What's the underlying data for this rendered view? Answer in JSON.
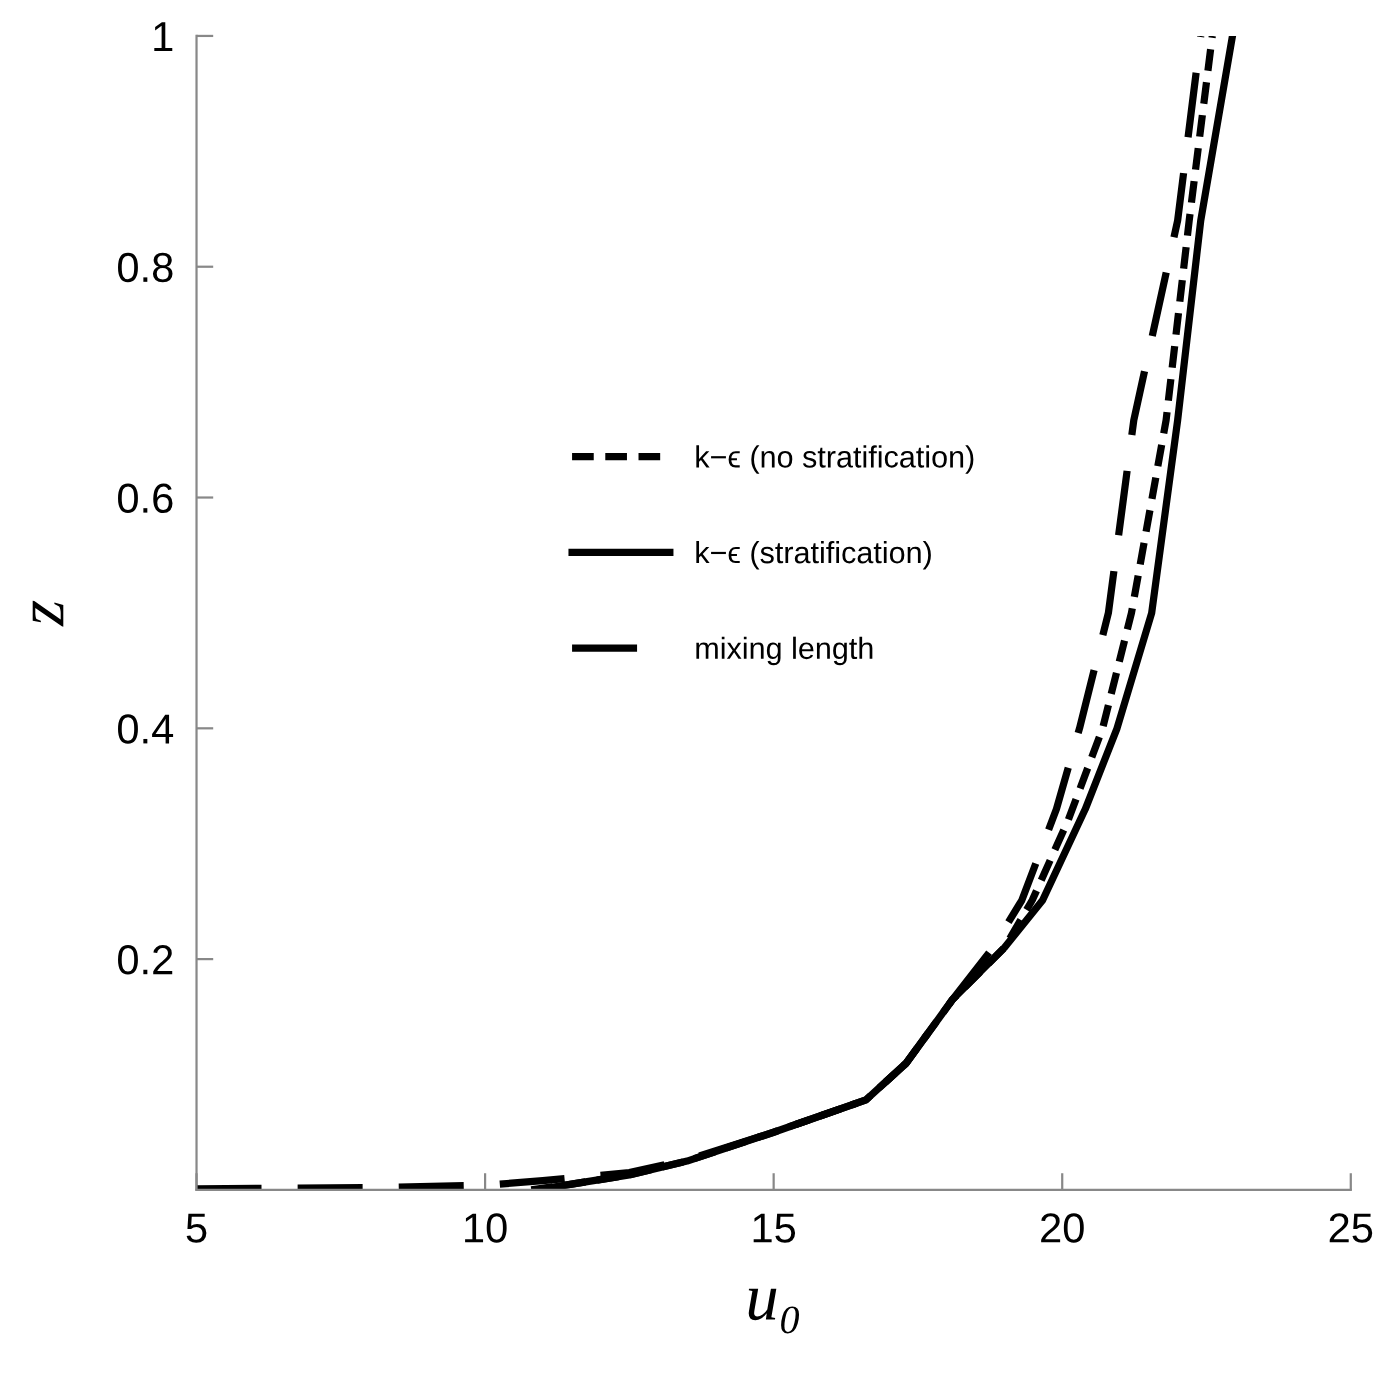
{
  "chart_data": {
    "type": "line",
    "xlabel": "u₀",
    "ylabel": "z",
    "xlim": [
      5,
      25
    ],
    "ylim": [
      0,
      1
    ],
    "xticks": [
      5,
      10,
      15,
      20,
      25
    ],
    "yticks": [
      0.2,
      0.4,
      0.6,
      0.8,
      1
    ],
    "grid": false,
    "legend": "center",
    "marker": "none",
    "series": [
      {
        "name": "k−ϵ (no stratification)",
        "color": "#000000",
        "line_style": "dashed",
        "x": [
          10.8,
          11.5,
          12.5,
          13.5,
          15,
          16.6,
          17.3,
          18.1,
          19.0,
          19.48,
          20.1,
          20.7,
          21.2,
          21.8,
          22.2,
          22.6
        ],
        "values": [
          0,
          0.005,
          0.013,
          0.025,
          0.05,
          0.078,
          0.11,
          0.165,
          0.21,
          0.251,
          0.32,
          0.4,
          0.5,
          0.667,
          0.84,
          1.0
        ]
      },
      {
        "name": "k−ϵ (stratification)",
        "color": "#000000",
        "line_style": "solid",
        "x": [
          10.9,
          11.5,
          12.5,
          13.5,
          15,
          16.6,
          17.3,
          18.1,
          19.0,
          19.66,
          20.4,
          20.95,
          21.55,
          22.0,
          22.4,
          22.95
        ],
        "values": [
          0,
          0.005,
          0.013,
          0.025,
          0.05,
          0.078,
          0.11,
          0.165,
          0.21,
          0.251,
          0.33,
          0.4,
          0.5,
          0.667,
          0.84,
          1.0
        ]
      },
      {
        "name": "mixing length",
        "color": "#000000",
        "line_style": "longdash",
        "x": [
          5,
          8,
          10,
          11,
          12.5,
          13.5,
          15,
          16.6,
          17.3,
          18.1,
          18.8,
          19.3,
          19.9,
          20.3,
          20.8,
          21.24,
          22.0,
          22.4
        ],
        "values": [
          0.001,
          0.002,
          0.004,
          0.008,
          0.015,
          0.026,
          0.05,
          0.078,
          0.11,
          0.165,
          0.21,
          0.251,
          0.33,
          0.4,
          0.5,
          0.667,
          0.84,
          1.0
        ]
      }
    ]
  }
}
